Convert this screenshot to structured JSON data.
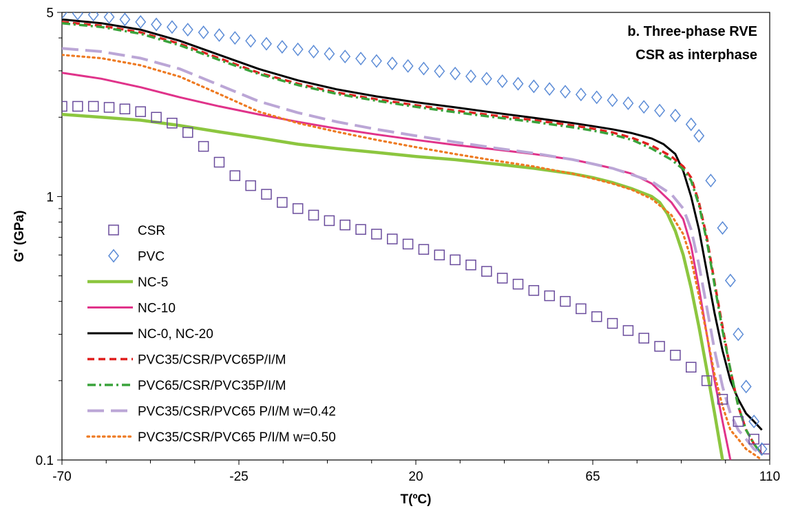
{
  "chart_data": {
    "type": "line",
    "title_lines": [
      "b. Three-phase RVE",
      "CSR as interphase"
    ],
    "xlabel": "T(ºC)",
    "ylabel": "G' (GPa)",
    "xlim": [
      -70,
      110
    ],
    "ylim": [
      0.1,
      5
    ],
    "yscale": "log",
    "grid": false,
    "legend_placement": "bottom-left",
    "x_ticks": [
      "-70",
      "-25",
      "20",
      "65",
      "110"
    ],
    "y_ticks": [
      "0.1",
      "1",
      "5"
    ],
    "series": [
      {
        "name": "CSR",
        "style": "square-markers",
        "color": "#6a4c9c",
        "x": [
          -70,
          -66,
          -62,
          -58,
          -54,
          -50,
          -46,
          -42,
          -38,
          -34,
          -30,
          -26,
          -22,
          -18,
          -14,
          -10,
          -6,
          -2,
          2,
          6,
          10,
          14,
          18,
          22,
          26,
          30,
          34,
          38,
          42,
          46,
          50,
          54,
          58,
          62,
          66,
          70,
          74,
          78,
          82,
          86,
          90,
          94,
          98,
          102,
          106,
          109
        ],
        "y": [
          2.2,
          2.2,
          2.2,
          2.18,
          2.15,
          2.1,
          2.0,
          1.9,
          1.75,
          1.55,
          1.35,
          1.2,
          1.1,
          1.02,
          0.95,
          0.9,
          0.85,
          0.81,
          0.78,
          0.75,
          0.72,
          0.69,
          0.66,
          0.63,
          0.6,
          0.575,
          0.55,
          0.52,
          0.49,
          0.465,
          0.44,
          0.42,
          0.4,
          0.375,
          0.35,
          0.33,
          0.31,
          0.29,
          0.27,
          0.25,
          0.225,
          0.2,
          0.17,
          0.14,
          0.12,
          0.11
        ]
      },
      {
        "name": "PVC",
        "style": "diamond-markers",
        "color": "#5b8bd6",
        "x": [
          -70,
          -66,
          -62,
          -58,
          -54,
          -50,
          -46,
          -42,
          -38,
          -34,
          -30,
          -26,
          -22,
          -18,
          -14,
          -10,
          -6,
          -2,
          2,
          6,
          10,
          14,
          18,
          22,
          26,
          30,
          34,
          38,
          42,
          46,
          50,
          54,
          58,
          62,
          66,
          70,
          74,
          78,
          82,
          86,
          90,
          92,
          95,
          98,
          100,
          102,
          104,
          106,
          108
        ],
        "y": [
          5.0,
          4.95,
          4.9,
          4.8,
          4.7,
          4.6,
          4.5,
          4.4,
          4.3,
          4.2,
          4.1,
          4.0,
          3.9,
          3.8,
          3.7,
          3.62,
          3.55,
          3.48,
          3.4,
          3.34,
          3.27,
          3.2,
          3.13,
          3.06,
          2.99,
          2.93,
          2.86,
          2.8,
          2.74,
          2.68,
          2.62,
          2.56,
          2.5,
          2.44,
          2.38,
          2.32,
          2.26,
          2.19,
          2.12,
          2.03,
          1.88,
          1.7,
          1.15,
          0.76,
          0.48,
          0.3,
          0.19,
          0.14,
          0.11
        ]
      },
      {
        "name": "NC-5",
        "style": "thick-solid",
        "color": "#8cc63f",
        "x": [
          -70,
          -60,
          -50,
          -40,
          -30,
          -20,
          -10,
          0,
          10,
          20,
          30,
          40,
          50,
          60,
          65,
          70,
          75,
          80,
          82,
          84,
          86,
          88,
          90,
          92,
          94,
          96,
          98
        ],
        "y": [
          2.05,
          2.0,
          1.95,
          1.86,
          1.76,
          1.67,
          1.58,
          1.52,
          1.47,
          1.42,
          1.38,
          1.33,
          1.28,
          1.22,
          1.18,
          1.13,
          1.07,
          1.0,
          0.95,
          0.86,
          0.74,
          0.6,
          0.45,
          0.32,
          0.22,
          0.15,
          0.1
        ]
      },
      {
        "name": "NC-10",
        "style": "solid",
        "color": "#e0338a",
        "x": [
          -70,
          -60,
          -50,
          -40,
          -30,
          -20,
          -10,
          0,
          10,
          20,
          30,
          40,
          50,
          60,
          65,
          70,
          75,
          80,
          85,
          88,
          90,
          92,
          94,
          96,
          98,
          100
        ],
        "y": [
          2.95,
          2.8,
          2.6,
          2.38,
          2.2,
          2.05,
          1.92,
          1.81,
          1.72,
          1.64,
          1.57,
          1.51,
          1.45,
          1.38,
          1.33,
          1.28,
          1.22,
          1.12,
          0.95,
          0.82,
          0.65,
          0.45,
          0.3,
          0.2,
          0.14,
          0.1
        ]
      },
      {
        "name": "NC-0, NC-20",
        "style": "solid",
        "color": "#000000",
        "x": [
          -70,
          -60,
          -50,
          -40,
          -30,
          -20,
          -10,
          0,
          10,
          20,
          30,
          40,
          50,
          60,
          65,
          70,
          75,
          80,
          83,
          86,
          88,
          90,
          92,
          94,
          96,
          98,
          100,
          102,
          104,
          106,
          108
        ],
        "y": [
          4.7,
          4.55,
          4.3,
          3.9,
          3.45,
          3.05,
          2.76,
          2.55,
          2.4,
          2.28,
          2.18,
          2.08,
          1.99,
          1.9,
          1.85,
          1.8,
          1.74,
          1.66,
          1.58,
          1.45,
          1.25,
          1.0,
          0.75,
          0.52,
          0.36,
          0.26,
          0.2,
          0.17,
          0.15,
          0.14,
          0.13
        ]
      },
      {
        "name": "PVC35/CSR/PVC65P/I/M",
        "style": "dashed",
        "color": "#e0201f",
        "x": [
          -70,
          -60,
          -50,
          -40,
          -30,
          -20,
          -10,
          0,
          10,
          20,
          30,
          40,
          50,
          60,
          65,
          70,
          75,
          80,
          85,
          88,
          90,
          92,
          94,
          96,
          98,
          100,
          102,
          104,
          106,
          108
        ],
        "y": [
          4.6,
          4.45,
          4.2,
          3.8,
          3.35,
          2.95,
          2.68,
          2.48,
          2.34,
          2.22,
          2.12,
          2.03,
          1.95,
          1.86,
          1.81,
          1.75,
          1.67,
          1.56,
          1.42,
          1.3,
          1.18,
          0.95,
          0.7,
          0.47,
          0.32,
          0.22,
          0.16,
          0.13,
          0.115,
          0.105
        ]
      },
      {
        "name": "PVC65/CSR/PVC35P/I/M",
        "style": "dash-dot",
        "color": "#3aa33b",
        "x": [
          -70,
          -60,
          -50,
          -40,
          -30,
          -20,
          -10,
          0,
          10,
          20,
          30,
          40,
          50,
          60,
          65,
          70,
          75,
          80,
          85,
          88,
          90,
          92,
          94,
          96,
          98,
          100,
          102,
          104,
          106,
          108
        ],
        "y": [
          4.55,
          4.4,
          4.15,
          3.75,
          3.3,
          2.92,
          2.65,
          2.45,
          2.31,
          2.19,
          2.09,
          2.0,
          1.92,
          1.83,
          1.78,
          1.72,
          1.64,
          1.52,
          1.38,
          1.27,
          1.15,
          0.93,
          0.68,
          0.46,
          0.31,
          0.22,
          0.16,
          0.13,
          0.115,
          0.105
        ]
      },
      {
        "name": "PVC35/CSR/PVC65 P/I/M w=0.42",
        "style": "long-dash",
        "color": "#bba6d6",
        "x": [
          -70,
          -60,
          -50,
          -40,
          -30,
          -20,
          -10,
          0,
          10,
          20,
          30,
          40,
          50,
          60,
          65,
          70,
          75,
          80,
          85,
          88,
          90,
          92,
          94,
          96,
          98,
          100,
          102,
          104,
          106,
          108
        ],
        "y": [
          3.65,
          3.55,
          3.35,
          3.05,
          2.65,
          2.3,
          2.08,
          1.92,
          1.8,
          1.7,
          1.61,
          1.53,
          1.46,
          1.38,
          1.33,
          1.28,
          1.21,
          1.14,
          1.02,
          0.9,
          0.75,
          0.55,
          0.38,
          0.26,
          0.19,
          0.15,
          0.13,
          0.12,
          0.11,
          0.105
        ]
      },
      {
        "name": "PVC35/CSR/PVC65 P/I/M w=0.50",
        "style": "dotted",
        "color": "#ee7a22",
        "x": [
          -70,
          -60,
          -50,
          -40,
          -30,
          -20,
          -10,
          0,
          10,
          20,
          30,
          40,
          50,
          60,
          65,
          70,
          75,
          80,
          85,
          88,
          90,
          92,
          94,
          96,
          98,
          100,
          102,
          104,
          106,
          108
        ],
        "y": [
          3.45,
          3.35,
          3.15,
          2.85,
          2.45,
          2.1,
          1.9,
          1.76,
          1.64,
          1.54,
          1.45,
          1.37,
          1.3,
          1.22,
          1.17,
          1.12,
          1.06,
          0.98,
          0.85,
          0.72,
          0.58,
          0.42,
          0.3,
          0.21,
          0.16,
          0.13,
          0.12,
          0.11,
          0.105,
          0.1
        ]
      }
    ]
  }
}
